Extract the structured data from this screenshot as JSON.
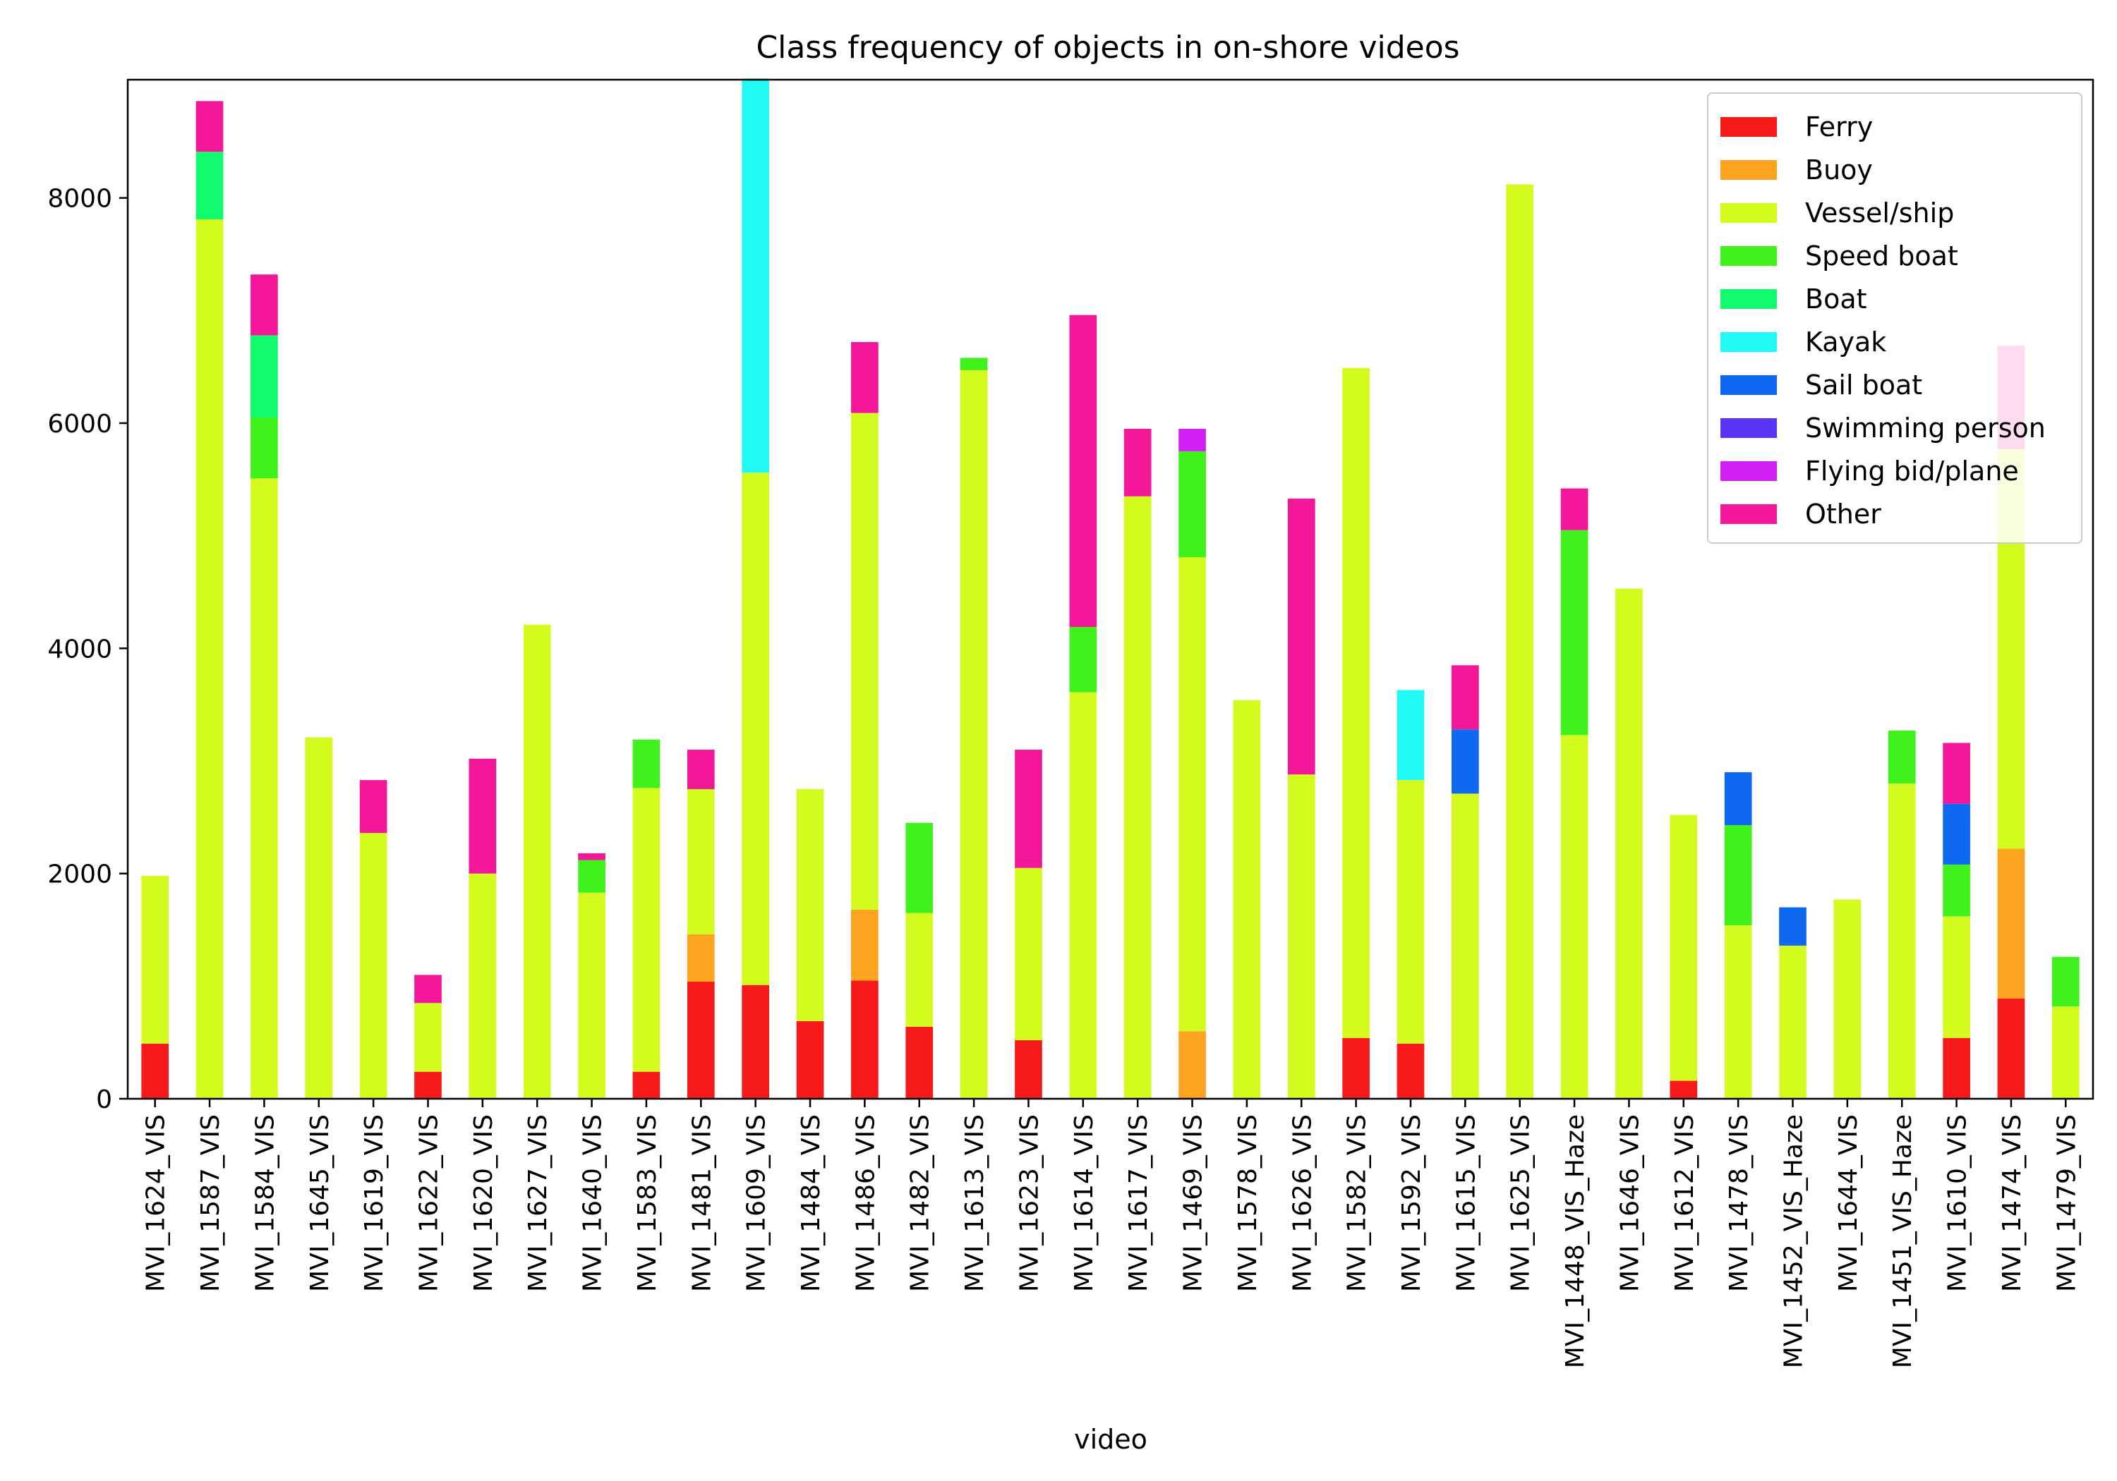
{
  "chart_data": {
    "type": "bar",
    "stacked": true,
    "title": "Class frequency of objects in on-shore videos",
    "xlabel": "video",
    "ylabel": "",
    "ylim": [
      0,
      9050
    ],
    "yticks": [
      0,
      2000,
      4000,
      6000,
      8000
    ],
    "legend_position": "top-right",
    "grid": false,
    "categories": [
      "MVI_1624_VIS",
      "MVI_1587_VIS",
      "MVI_1584_VIS",
      "MVI_1645_VIS",
      "MVI_1619_VIS",
      "MVI_1622_VIS",
      "MVI_1620_VIS",
      "MVI_1627_VIS",
      "MVI_1640_VIS",
      "MVI_1583_VIS",
      "MVI_1481_VIS",
      "MVI_1609_VIS",
      "MVI_1484_VIS",
      "MVI_1486_VIS",
      "MVI_1482_VIS",
      "MVI_1613_VIS",
      "MVI_1623_VIS",
      "MVI_1614_VIS",
      "MVI_1617_VIS",
      "MVI_1469_VIS",
      "MVI_1578_VIS",
      "MVI_1626_VIS",
      "MVI_1582_VIS",
      "MVI_1592_VIS",
      "MVI_1615_VIS",
      "MVI_1625_VIS",
      "MVI_1448_VIS_Haze",
      "MVI_1646_VIS",
      "MVI_1612_VIS",
      "MVI_1478_VIS",
      "MVI_1452_VIS_Haze",
      "MVI_1644_VIS",
      "MVI_1451_VIS_Haze",
      "MVI_1610_VIS",
      "MVI_1474_VIS",
      "MVI_1479_VIS"
    ],
    "series": [
      {
        "name": "Ferry",
        "color": "#f81a1a",
        "values": [
          490,
          0,
          0,
          0,
          0,
          240,
          0,
          0,
          0,
          240,
          1040,
          1010,
          690,
          1050,
          640,
          0,
          520,
          0,
          0,
          0,
          0,
          0,
          540,
          490,
          0,
          0,
          0,
          0,
          160,
          0,
          0,
          0,
          0,
          540,
          890,
          0
        ]
      },
      {
        "name": "Buoy",
        "color": "#fca41f",
        "values": [
          0,
          0,
          0,
          0,
          0,
          0,
          0,
          0,
          0,
          0,
          420,
          0,
          0,
          630,
          0,
          0,
          0,
          0,
          0,
          600,
          0,
          0,
          0,
          0,
          0,
          0,
          0,
          0,
          0,
          0,
          0,
          0,
          0,
          0,
          1330,
          0
        ]
      },
      {
        "name": "Vessel/ship",
        "color": "#d4fb1e",
        "values": [
          1490,
          7810,
          5510,
          3210,
          2360,
          610,
          2000,
          4210,
          1830,
          2520,
          1290,
          4550,
          2060,
          4410,
          1010,
          6470,
          1530,
          3610,
          5350,
          4210,
          3540,
          2880,
          5950,
          2340,
          2710,
          8120,
          3230,
          4530,
          2360,
          1540,
          1360,
          1770,
          2800,
          1080,
          3550,
          820
        ]
      },
      {
        "name": "Speed boat",
        "color": "#40f21c",
        "values": [
          0,
          0,
          540,
          0,
          0,
          0,
          0,
          0,
          290,
          430,
          0,
          0,
          0,
          0,
          800,
          110,
          0,
          580,
          0,
          940,
          0,
          0,
          0,
          0,
          0,
          0,
          1820,
          0,
          0,
          890,
          0,
          0,
          470,
          460,
          0,
          440
        ]
      },
      {
        "name": "Boat",
        "color": "#10fb6e",
        "values": [
          0,
          600,
          730,
          0,
          0,
          0,
          0,
          0,
          0,
          0,
          0,
          0,
          0,
          0,
          0,
          0,
          0,
          0,
          0,
          0,
          0,
          0,
          0,
          0,
          0,
          0,
          0,
          0,
          0,
          0,
          0,
          0,
          0,
          0,
          0,
          0
        ]
      },
      {
        "name": "Kayak",
        "color": "#20f9f5",
        "values": [
          0,
          0,
          0,
          0,
          0,
          0,
          0,
          0,
          0,
          0,
          0,
          3500,
          0,
          0,
          0,
          0,
          0,
          0,
          0,
          0,
          0,
          0,
          0,
          800,
          0,
          0,
          0,
          0,
          0,
          0,
          0,
          0,
          0,
          0,
          0,
          0
        ]
      },
      {
        "name": "Sail boat",
        "color": "#0f68f0",
        "values": [
          0,
          0,
          0,
          0,
          0,
          0,
          0,
          0,
          0,
          0,
          0,
          0,
          0,
          0,
          0,
          0,
          0,
          0,
          0,
          0,
          0,
          0,
          0,
          0,
          570,
          0,
          0,
          0,
          0,
          470,
          340,
          0,
          0,
          540,
          0,
          0
        ]
      },
      {
        "name": "Swimming person",
        "color": "#5a35f4",
        "values": [
          0,
          0,
          0,
          0,
          0,
          0,
          0,
          0,
          0,
          0,
          0,
          0,
          0,
          0,
          0,
          0,
          0,
          0,
          0,
          0,
          0,
          0,
          0,
          0,
          0,
          0,
          0,
          0,
          0,
          0,
          0,
          0,
          0,
          0,
          0,
          0
        ]
      },
      {
        "name": "Flying bid/plane",
        "color": "#d21ff5",
        "values": [
          0,
          0,
          0,
          0,
          0,
          0,
          0,
          0,
          0,
          0,
          0,
          0,
          0,
          0,
          0,
          0,
          0,
          0,
          0,
          200,
          0,
          0,
          0,
          0,
          0,
          0,
          0,
          0,
          0,
          0,
          0,
          0,
          0,
          0,
          0,
          0
        ]
      },
      {
        "name": "Other",
        "color": "#f5179a",
        "values": [
          0,
          450,
          540,
          0,
          470,
          250,
          1020,
          0,
          60,
          0,
          350,
          0,
          0,
          630,
          0,
          0,
          1050,
          2770,
          600,
          0,
          0,
          2450,
          0,
          0,
          570,
          0,
          370,
          0,
          0,
          0,
          0,
          0,
          0,
          540,
          920,
          0
        ]
      }
    ]
  }
}
